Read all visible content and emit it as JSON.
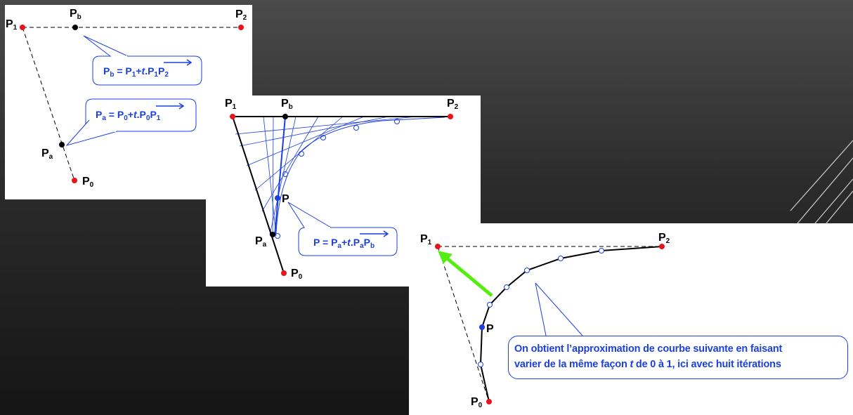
{
  "panel1": {
    "labels": {
      "p0": "P",
      "p0_sub": "0",
      "p1": "P",
      "p1_sub": "1",
      "p2": "P",
      "p2_sub": "2",
      "pa": "P",
      "pa_sub": "a",
      "pb": "P",
      "pb_sub": "b"
    },
    "formula_b": {
      "lhs": "P",
      "lhs_sub": "b",
      "eq": " = ",
      "p1": "P",
      "p1_sub": "1",
      "plus": "+",
      "t": "t",
      "dot": ".",
      "vec": "P",
      "vec_sub1": "1",
      "vec2": "P",
      "vec_sub2": "2"
    },
    "formula_a": {
      "lhs": "P",
      "lhs_sub": "a",
      "eq": " = ",
      "p0": "P",
      "p0_sub": "0",
      "plus": "+",
      "t": "t",
      "dot": ".",
      "vec": "P",
      "vec_sub1": "0",
      "vec2": "P",
      "vec_sub2": "1"
    }
  },
  "panel2": {
    "labels": {
      "p0": "P",
      "p0_sub": "0",
      "p1": "P",
      "p1_sub": "1",
      "p2": "P",
      "p2_sub": "2",
      "pa": "P",
      "pa_sub": "a",
      "pb": "P",
      "pb_sub": "b",
      "p": "P"
    },
    "formula": {
      "lhs": "P",
      "eq": " = ",
      "pa": "P",
      "pa_sub": "a",
      "plus": "+",
      "t": "t",
      "dot": ".",
      "vec": "P",
      "vec_sub1": "a",
      "vec2": "P",
      "vec_sub2": "b"
    }
  },
  "panel3": {
    "labels": {
      "p0": "P",
      "p0_sub": "0",
      "p1": "P",
      "p1_sub": "1",
      "p2": "P",
      "p2_sub": "2",
      "p": "P"
    },
    "caption_line1": "On obtient l’approximation de courbe suivante en faisant",
    "caption_line2_a": "varier de la même façon ",
    "caption_line2_t": "t",
    "caption_line2_b": " de 0 à 1, ici avec huit itérations"
  },
  "colors": {
    "red": "#e8131b",
    "blue": "#1b3fe0",
    "green": "#55ee11",
    "black": "#000000"
  }
}
